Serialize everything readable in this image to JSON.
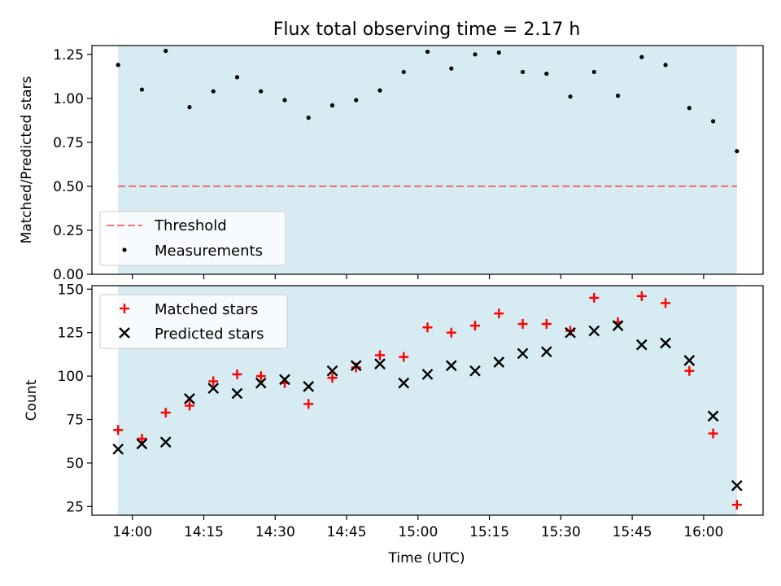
{
  "chart_data": [
    {
      "type": "scatter",
      "title": "Flux total observing time = 2.17 h",
      "xlabel": "",
      "ylabel": "Matched/Predicted stars",
      "ylim": [
        0,
        1.3
      ],
      "yticks": [
        "0.00",
        "0.25",
        "0.50",
        "0.75",
        "1.00",
        "1.25"
      ],
      "shaded_span": [
        "13:57",
        "16:07"
      ],
      "shade_color": "#add8e6",
      "legend_position": "lower-left",
      "threshold": {
        "name": "Threshold",
        "value": 0.5,
        "color": "#ff0000",
        "style": "dashed"
      },
      "series": [
        {
          "name": "Measurements",
          "color": "#000000",
          "marker": "dot",
          "x": [
            "13:57",
            "14:02",
            "14:07",
            "14:12",
            "14:17",
            "14:22",
            "14:27",
            "14:32",
            "14:37",
            "14:42",
            "14:47",
            "14:52",
            "14:57",
            "15:02",
            "15:07",
            "15:12",
            "15:17",
            "15:22",
            "15:27",
            "15:32",
            "15:37",
            "15:42",
            "15:47",
            "15:52",
            "15:57",
            "16:02",
            "16:07"
          ],
          "y": [
            1.19,
            1.05,
            1.27,
            0.95,
            1.04,
            1.12,
            1.04,
            0.99,
            0.89,
            0.96,
            0.99,
            1.045,
            1.15,
            1.265,
            1.17,
            1.25,
            1.26,
            1.15,
            1.14,
            1.01,
            1.15,
            1.015,
            1.235,
            1.19,
            0.945,
            0.87,
            0.7
          ]
        }
      ]
    },
    {
      "type": "scatter",
      "title": "",
      "xlabel": "Time (UTC)",
      "ylabel": "Count",
      "ylim": [
        20,
        152
      ],
      "yticks": [
        "25",
        "50",
        "75",
        "100",
        "125",
        "150"
      ],
      "xticks": [
        "14:00",
        "14:15",
        "14:30",
        "14:45",
        "15:00",
        "15:15",
        "15:30",
        "15:45",
        "16:00"
      ],
      "shaded_span": [
        "13:57",
        "16:07"
      ],
      "shade_color": "#add8e6",
      "legend_position": "upper-left",
      "series": [
        {
          "name": "Matched stars",
          "color": "#ff0000",
          "marker": "plus",
          "x": [
            "13:57",
            "14:02",
            "14:07",
            "14:12",
            "14:17",
            "14:22",
            "14:27",
            "14:32",
            "14:37",
            "14:42",
            "14:47",
            "14:52",
            "14:57",
            "15:02",
            "15:07",
            "15:12",
            "15:17",
            "15:22",
            "15:27",
            "15:32",
            "15:37",
            "15:42",
            "15:47",
            "15:52",
            "15:57",
            "16:02",
            "16:07"
          ],
          "y": [
            69,
            64,
            79,
            83,
            97,
            101,
            100,
            96,
            84,
            99,
            105,
            112,
            111,
            128,
            125,
            129,
            136,
            130,
            130,
            126,
            145,
            131,
            146,
            142,
            103,
            67,
            26
          ]
        },
        {
          "name": "Predicted stars",
          "color": "#000000",
          "marker": "x",
          "x": [
            "13:57",
            "14:02",
            "14:07",
            "14:12",
            "14:17",
            "14:22",
            "14:27",
            "14:32",
            "14:37",
            "14:42",
            "14:47",
            "14:52",
            "14:57",
            "15:02",
            "15:07",
            "15:12",
            "15:17",
            "15:22",
            "15:27",
            "15:32",
            "15:37",
            "15:42",
            "15:47",
            "15:52",
            "15:57",
            "16:02",
            "16:07"
          ],
          "y": [
            58,
            61,
            62,
            87,
            93,
            90,
            96,
            98,
            94,
            103,
            106,
            107,
            96,
            101,
            106,
            103,
            108,
            113,
            114,
            125,
            126,
            129,
            118,
            119,
            109,
            77,
            37
          ]
        }
      ]
    }
  ]
}
